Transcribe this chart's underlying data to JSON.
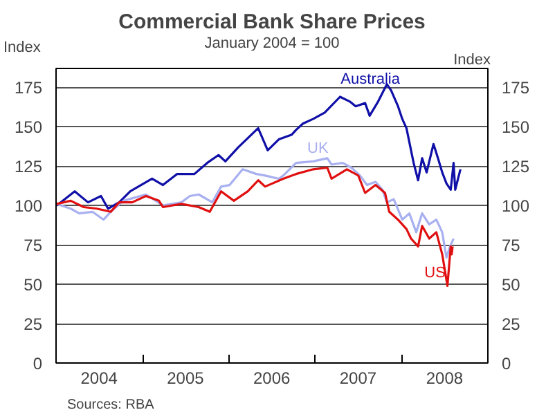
{
  "chart_data": {
    "type": "line",
    "title": "Commercial Bank Share Prices",
    "subtitle": "January 2004 = 100",
    "ylabel": "Index",
    "y2label": "Index",
    "annotations": [
      "Sources: RBA"
    ],
    "xlim": [
      "2004-01-01",
      "2008-12-31"
    ],
    "xticks": [
      {
        "value": "2004-07-01",
        "label": "2004"
      },
      {
        "value": "2005-07-01",
        "label": "2005"
      },
      {
        "value": "2006-07-01",
        "label": "2006"
      },
      {
        "value": "2007-07-01",
        "label": "2007"
      },
      {
        "value": "2008-07-01",
        "label": "2008"
      },
      {
        "value": "2005-01-01",
        "label": null
      },
      {
        "value": "2006-01-01",
        "label": null
      },
      {
        "value": "2007-01-01",
        "label": null
      },
      {
        "value": "2008-01-01",
        "label": null
      }
    ],
    "ylim": [
      0,
      187
    ],
    "yticks": [
      0,
      25,
      50,
      75,
      100,
      125,
      150,
      175
    ],
    "y2lim": [
      0,
      187
    ],
    "y2ticks": [
      0,
      25,
      50,
      75,
      100,
      125,
      150,
      175
    ],
    "grid": "y",
    "line_style": "solid",
    "marker": "none",
    "series": [
      {
        "name": "Australia",
        "color": "#1010a8",
        "x": [
          "2004-01-04",
          "2004-03-20",
          "2004-05-15",
          "2004-07-09",
          "2004-08-08",
          "2004-09-24",
          "2004-11-10",
          "2005-02-10",
          "2005-03-28",
          "2005-05-27",
          "2005-08-08",
          "2005-10-01",
          "2005-11-18",
          "2005-12-17",
          "2006-02-10",
          "2006-04-27",
          "2006-05-05",
          "2006-06-14",
          "2006-07-31",
          "2006-09-24",
          "2006-10-12",
          "2006-11-10",
          "2006-12-24",
          "2007-02-10",
          "2007-04-16",
          "2007-05-27",
          "2007-06-21",
          "2007-07-31",
          "2007-08-19",
          "2007-09-24",
          "2007-10-31",
          "2007-11-18",
          "2007-12-17",
          "2008-01-04",
          "2008-01-22",
          "2008-02-21",
          "2008-03-11",
          "2008-03-28",
          "2008-04-16",
          "2008-05-15",
          "2008-06-03",
          "2008-06-21",
          "2008-07-09",
          "2008-07-27",
          "2008-08-08",
          "2008-08-15",
          "2008-09-06"
        ],
        "values": [
          100,
          109,
          102,
          106,
          98,
          102,
          109,
          117,
          113,
          120,
          120,
          127,
          132,
          128,
          137,
          148,
          149,
          135,
          142,
          145,
          148,
          152,
          155,
          159,
          169,
          166,
          163,
          165,
          157,
          166,
          177,
          173,
          163,
          155,
          149,
          127,
          116,
          130,
          121,
          139,
          130,
          121,
          114,
          110,
          127,
          110,
          123
        ]
      },
      {
        "name": "UK",
        "color": "#a8b0f0",
        "x": [
          "2004-01-04",
          "2004-03-03",
          "2004-04-08",
          "2004-06-03",
          "2004-07-20",
          "2004-08-19",
          "2004-10-12",
          "2005-01-15",
          "2005-03-28",
          "2005-06-14",
          "2005-07-20",
          "2005-08-26",
          "2005-10-23",
          "2005-11-29",
          "2006-01-04",
          "2006-02-28",
          "2006-04-27",
          "2006-06-03",
          "2006-07-31",
          "2006-08-19",
          "2006-10-12",
          "2006-12-24",
          "2007-02-21",
          "2007-03-11",
          "2007-04-27",
          "2007-06-03",
          "2007-07-09",
          "2007-08-08",
          "2007-09-13",
          "2007-10-12",
          "2007-10-31",
          "2007-11-29",
          "2008-01-04",
          "2008-02-03",
          "2008-03-03",
          "2008-03-28",
          "2008-04-27",
          "2008-05-27",
          "2008-06-21",
          "2008-07-09",
          "2008-07-24",
          "2008-08-08"
        ],
        "values": [
          101,
          98,
          95,
          96,
          91,
          96,
          103,
          107,
          100,
          102,
          106,
          107,
          102,
          112,
          113,
          123,
          120,
          119,
          117,
          119,
          127,
          128,
          130,
          126,
          127,
          124,
          119,
          113,
          115,
          110,
          102,
          104,
          91,
          95,
          83,
          95,
          88,
          91,
          83,
          67,
          74,
          79
        ]
      },
      {
        "name": "US",
        "color": "#e01010",
        "x": [
          "2004-01-04",
          "2004-03-03",
          "2004-04-27",
          "2004-06-21",
          "2004-08-19",
          "2004-09-24",
          "2004-11-18",
          "2005-01-15",
          "2005-03-11",
          "2005-03-28",
          "2005-06-14",
          "2005-08-26",
          "2005-10-12",
          "2005-11-29",
          "2006-01-22",
          "2006-03-22",
          "2006-05-05",
          "2006-06-03",
          "2006-08-19",
          "2006-10-12",
          "2006-12-24",
          "2007-02-21",
          "2007-03-11",
          "2007-05-15",
          "2007-07-02",
          "2007-07-31",
          "2007-09-13",
          "2007-10-23",
          "2007-11-10",
          "2007-12-17",
          "2008-01-22",
          "2008-02-10",
          "2008-03-11",
          "2008-03-28",
          "2008-04-27",
          "2008-05-27",
          "2008-06-21",
          "2008-07-13",
          "2008-07-27",
          "2008-07-31",
          "2008-08-04"
        ],
        "values": [
          101,
          103,
          99,
          98,
          96,
          102,
          102,
          106,
          103,
          99,
          101,
          99,
          96,
          109,
          103,
          109,
          116,
          112,
          117,
          120,
          123,
          124,
          117,
          123,
          119,
          108,
          113,
          108,
          96,
          91,
          85,
          79,
          74,
          87,
          79,
          83,
          69,
          49,
          74,
          69,
          74
        ]
      }
    ]
  }
}
